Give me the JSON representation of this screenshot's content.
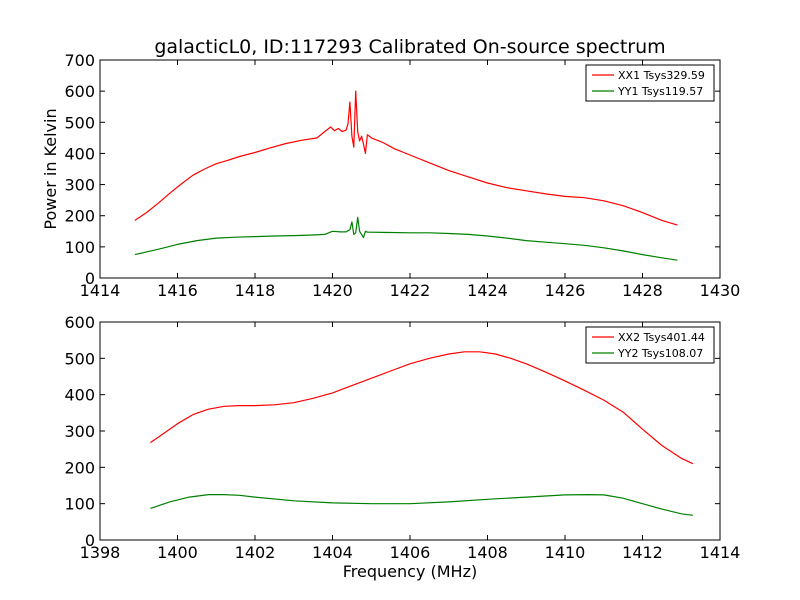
{
  "title": "galacticL0, ID:117293 Calibrated On-source spectrum",
  "chart_data": [
    {
      "type": "line",
      "title": "galacticL0, ID:117293 Calibrated On-source spectrum",
      "xlabel": "",
      "ylabel": "Power in Kelvin",
      "xlim": [
        1414,
        1430
      ],
      "ylim": [
        0,
        700
      ],
      "xticks": [
        1414,
        1416,
        1418,
        1420,
        1422,
        1424,
        1426,
        1428,
        1430
      ],
      "yticks": [
        0,
        100,
        200,
        300,
        400,
        500,
        600,
        700
      ],
      "grid": false,
      "legend_position": "top-right",
      "series": [
        {
          "name": "XX1 Tsys329.59",
          "color": "#ff0000",
          "x": [
            1414.9,
            1415.2,
            1415.5,
            1415.8,
            1416.1,
            1416.4,
            1416.7,
            1417.0,
            1417.3,
            1417.6,
            1418.0,
            1418.4,
            1418.8,
            1419.2,
            1419.6,
            1419.8,
            1419.95,
            1420.05,
            1420.15,
            1420.25,
            1420.35,
            1420.4,
            1420.45,
            1420.5,
            1420.55,
            1420.6,
            1420.65,
            1420.7,
            1420.75,
            1420.8,
            1420.85,
            1420.9,
            1421.0,
            1421.3,
            1421.6,
            1422.0,
            1422.5,
            1423.0,
            1423.5,
            1424.0,
            1424.5,
            1425.0,
            1425.5,
            1426.0,
            1426.5,
            1427.0,
            1427.5,
            1428.0,
            1428.5,
            1428.9
          ],
          "y": [
            185,
            210,
            240,
            272,
            302,
            330,
            350,
            367,
            378,
            390,
            403,
            418,
            432,
            442,
            450,
            470,
            485,
            473,
            480,
            470,
            475,
            495,
            565,
            455,
            420,
            600,
            470,
            440,
            455,
            430,
            400,
            460,
            450,
            435,
            415,
            395,
            370,
            345,
            325,
            305,
            290,
            280,
            270,
            262,
            258,
            248,
            232,
            210,
            185,
            170
          ]
        },
        {
          "name": "YY1 Tsys119.57",
          "color": "#008000",
          "x": [
            1414.9,
            1415.5,
            1416.0,
            1416.5,
            1417.0,
            1417.5,
            1418.0,
            1418.5,
            1419.0,
            1419.5,
            1419.8,
            1420.0,
            1420.2,
            1420.35,
            1420.45,
            1420.5,
            1420.55,
            1420.6,
            1420.65,
            1420.7,
            1420.75,
            1420.8,
            1420.85,
            1420.9,
            1421.0,
            1421.5,
            1422.0,
            1422.5,
            1423.0,
            1423.5,
            1424.0,
            1424.5,
            1425.0,
            1425.5,
            1426.0,
            1426.5,
            1427.0,
            1427.5,
            1428.0,
            1428.5,
            1428.9
          ],
          "y": [
            75,
            92,
            108,
            120,
            128,
            131,
            133,
            135,
            136,
            138,
            140,
            150,
            148,
            148,
            155,
            180,
            140,
            145,
            195,
            150,
            140,
            130,
            150,
            147,
            147,
            146,
            145,
            145,
            143,
            140,
            135,
            128,
            120,
            115,
            110,
            105,
            97,
            87,
            75,
            65,
            57
          ]
        }
      ]
    },
    {
      "type": "line",
      "title": "",
      "xlabel": "Frequency (MHz)",
      "ylabel": "",
      "xlim": [
        1398,
        1414
      ],
      "ylim": [
        0,
        600
      ],
      "xticks": [
        1398,
        1400,
        1402,
        1404,
        1406,
        1408,
        1410,
        1412,
        1414
      ],
      "yticks": [
        0,
        100,
        200,
        300,
        400,
        500,
        600
      ],
      "grid": false,
      "legend_position": "top-right",
      "series": [
        {
          "name": "XX2 Tsys401.44",
          "color": "#ff0000",
          "x": [
            1399.3,
            1399.6,
            1400.0,
            1400.4,
            1400.8,
            1401.2,
            1401.6,
            1402.0,
            1402.5,
            1403.0,
            1403.5,
            1404.0,
            1404.5,
            1405.0,
            1405.5,
            1406.0,
            1406.5,
            1407.0,
            1407.4,
            1407.8,
            1408.2,
            1408.6,
            1409.0,
            1409.5,
            1410.0,
            1410.5,
            1411.0,
            1411.5,
            1412.0,
            1412.5,
            1413.0,
            1413.3
          ],
          "y": [
            268,
            290,
            320,
            345,
            360,
            368,
            370,
            370,
            372,
            378,
            390,
            405,
            425,
            445,
            465,
            485,
            500,
            512,
            518,
            518,
            512,
            500,
            485,
            462,
            438,
            412,
            385,
            352,
            305,
            260,
            225,
            210
          ]
        },
        {
          "name": "YY2 Tsys108.07",
          "color": "#008000",
          "x": [
            1399.3,
            1399.8,
            1400.3,
            1400.8,
            1401.2,
            1401.6,
            1402.0,
            1403.0,
            1404.0,
            1405.0,
            1406.0,
            1407.0,
            1408.0,
            1409.0,
            1410.0,
            1410.6,
            1411.0,
            1411.5,
            1412.0,
            1412.5,
            1413.0,
            1413.3
          ],
          "y": [
            87,
            105,
            118,
            125,
            125,
            123,
            118,
            108,
            102,
            100,
            100,
            105,
            112,
            118,
            124,
            125,
            124,
            115,
            100,
            85,
            72,
            68
          ]
        }
      ]
    }
  ]
}
